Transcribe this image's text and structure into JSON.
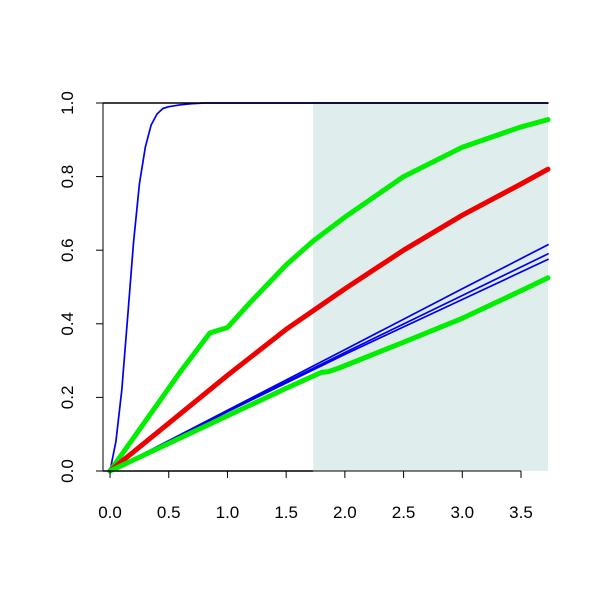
{
  "chart_data": {
    "type": "line",
    "title": "",
    "xlabel": "",
    "ylabel": "",
    "xlim": [
      -0.06,
      3.73
    ],
    "ylim": [
      0,
      1
    ],
    "grid": false,
    "legend": "none",
    "x_ticks": [
      "0.0",
      "0.5",
      "1.0",
      "1.5",
      "2.0",
      "2.5",
      "3.0",
      "3.5"
    ],
    "y_ticks": [
      "0.0",
      "0.2",
      "0.4",
      "0.6",
      "0.8",
      "1.0"
    ],
    "shaded_region": {
      "x_from": 1.73,
      "x_to": 3.73,
      "color": "#e0eded"
    },
    "colors": {
      "blue": "#0000ee",
      "green": "#00ee00",
      "red": "#ee0000"
    },
    "series": [
      {
        "color": "blue",
        "style": "thin",
        "x": [
          0,
          0.05,
          0.1,
          0.15,
          0.2,
          0.25,
          0.3,
          0.35,
          0.4,
          0.45,
          0.5,
          0.6,
          0.7,
          0.8,
          1.0,
          1.5,
          2.0,
          3.0,
          3.73
        ],
        "y": [
          0,
          0.08,
          0.22,
          0.42,
          0.62,
          0.78,
          0.88,
          0.94,
          0.97,
          0.985,
          0.99,
          0.995,
          0.998,
          1.0,
          1.0,
          1.0,
          1.0,
          1.0,
          1.0
        ]
      },
      {
        "color": "green",
        "style": "thick",
        "x": [
          0,
          0.2,
          0.4,
          0.6,
          0.85,
          0.92,
          1.0,
          1.2,
          1.5,
          1.73,
          2.0,
          2.5,
          3.0,
          3.5,
          3.73
        ],
        "y": [
          0,
          0.09,
          0.18,
          0.27,
          0.375,
          0.382,
          0.39,
          0.46,
          0.56,
          0.625,
          0.69,
          0.8,
          0.88,
          0.935,
          0.955
        ]
      },
      {
        "color": "red",
        "style": "thick",
        "x": [
          0,
          0.5,
          1.0,
          1.5,
          2.0,
          2.5,
          3.0,
          3.5,
          3.73
        ],
        "y": [
          0,
          0.13,
          0.26,
          0.385,
          0.495,
          0.6,
          0.695,
          0.78,
          0.82
        ]
      },
      {
        "color": "blue",
        "style": "thin",
        "x": [
          0,
          1.0,
          2.0,
          3.0,
          3.73
        ],
        "y": [
          0,
          0.165,
          0.33,
          0.495,
          0.615
        ]
      },
      {
        "color": "blue",
        "style": "thin",
        "x": [
          0,
          1.0,
          2.0,
          3.0,
          3.73
        ],
        "y": [
          0,
          0.163,
          0.322,
          0.477,
          0.59
        ]
      },
      {
        "color": "blue",
        "style": "thin",
        "x": [
          0,
          1.0,
          2.0,
          3.0,
          3.73
        ],
        "y": [
          0,
          0.161,
          0.317,
          0.466,
          0.575
        ]
      },
      {
        "color": "green",
        "style": "thick",
        "x": [
          0,
          0.5,
          1.0,
          1.5,
          1.8,
          1.86,
          1.95,
          2.5,
          3.0,
          3.5,
          3.73
        ],
        "y": [
          0,
          0.075,
          0.15,
          0.225,
          0.268,
          0.27,
          0.28,
          0.35,
          0.415,
          0.49,
          0.525
        ]
      }
    ]
  }
}
